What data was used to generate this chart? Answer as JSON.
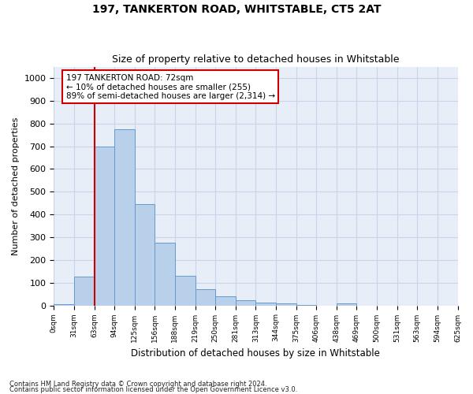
{
  "title1": "197, TANKERTON ROAD, WHITSTABLE, CT5 2AT",
  "title2": "Size of property relative to detached houses in Whitstable",
  "xlabel": "Distribution of detached houses by size in Whitstable",
  "ylabel": "Number of detached properties",
  "bar_values": [
    5,
    125,
    700,
    775,
    445,
    275,
    130,
    70,
    40,
    22,
    13,
    10,
    2,
    0,
    8,
    0,
    0,
    0,
    0,
    0
  ],
  "bin_labels": [
    "0sqm",
    "31sqm",
    "63sqm",
    "94sqm",
    "125sqm",
    "156sqm",
    "188sqm",
    "219sqm",
    "250sqm",
    "281sqm",
    "313sqm",
    "344sqm",
    "375sqm",
    "406sqm",
    "438sqm",
    "469sqm",
    "500sqm",
    "531sqm",
    "563sqm",
    "594sqm",
    "625sqm"
  ],
  "bar_color": "#b8d0ea",
  "bar_edge_color": "#6699cc",
  "vline_color": "#cc0000",
  "vline_x": 2.0,
  "annotation_text": "197 TANKERTON ROAD: 72sqm\n← 10% of detached houses are smaller (255)\n89% of semi-detached houses are larger (2,314) →",
  "annotation_box_color": "#ffffff",
  "annotation_box_edge": "#cc0000",
  "ylim": [
    0,
    1050
  ],
  "yticks": [
    0,
    100,
    200,
    300,
    400,
    500,
    600,
    700,
    800,
    900,
    1000
  ],
  "grid_color": "#c8d4e8",
  "background_color": "#e8eef8",
  "footer1": "Contains HM Land Registry data © Crown copyright and database right 2024.",
  "footer2": "Contains public sector information licensed under the Open Government Licence v3.0."
}
